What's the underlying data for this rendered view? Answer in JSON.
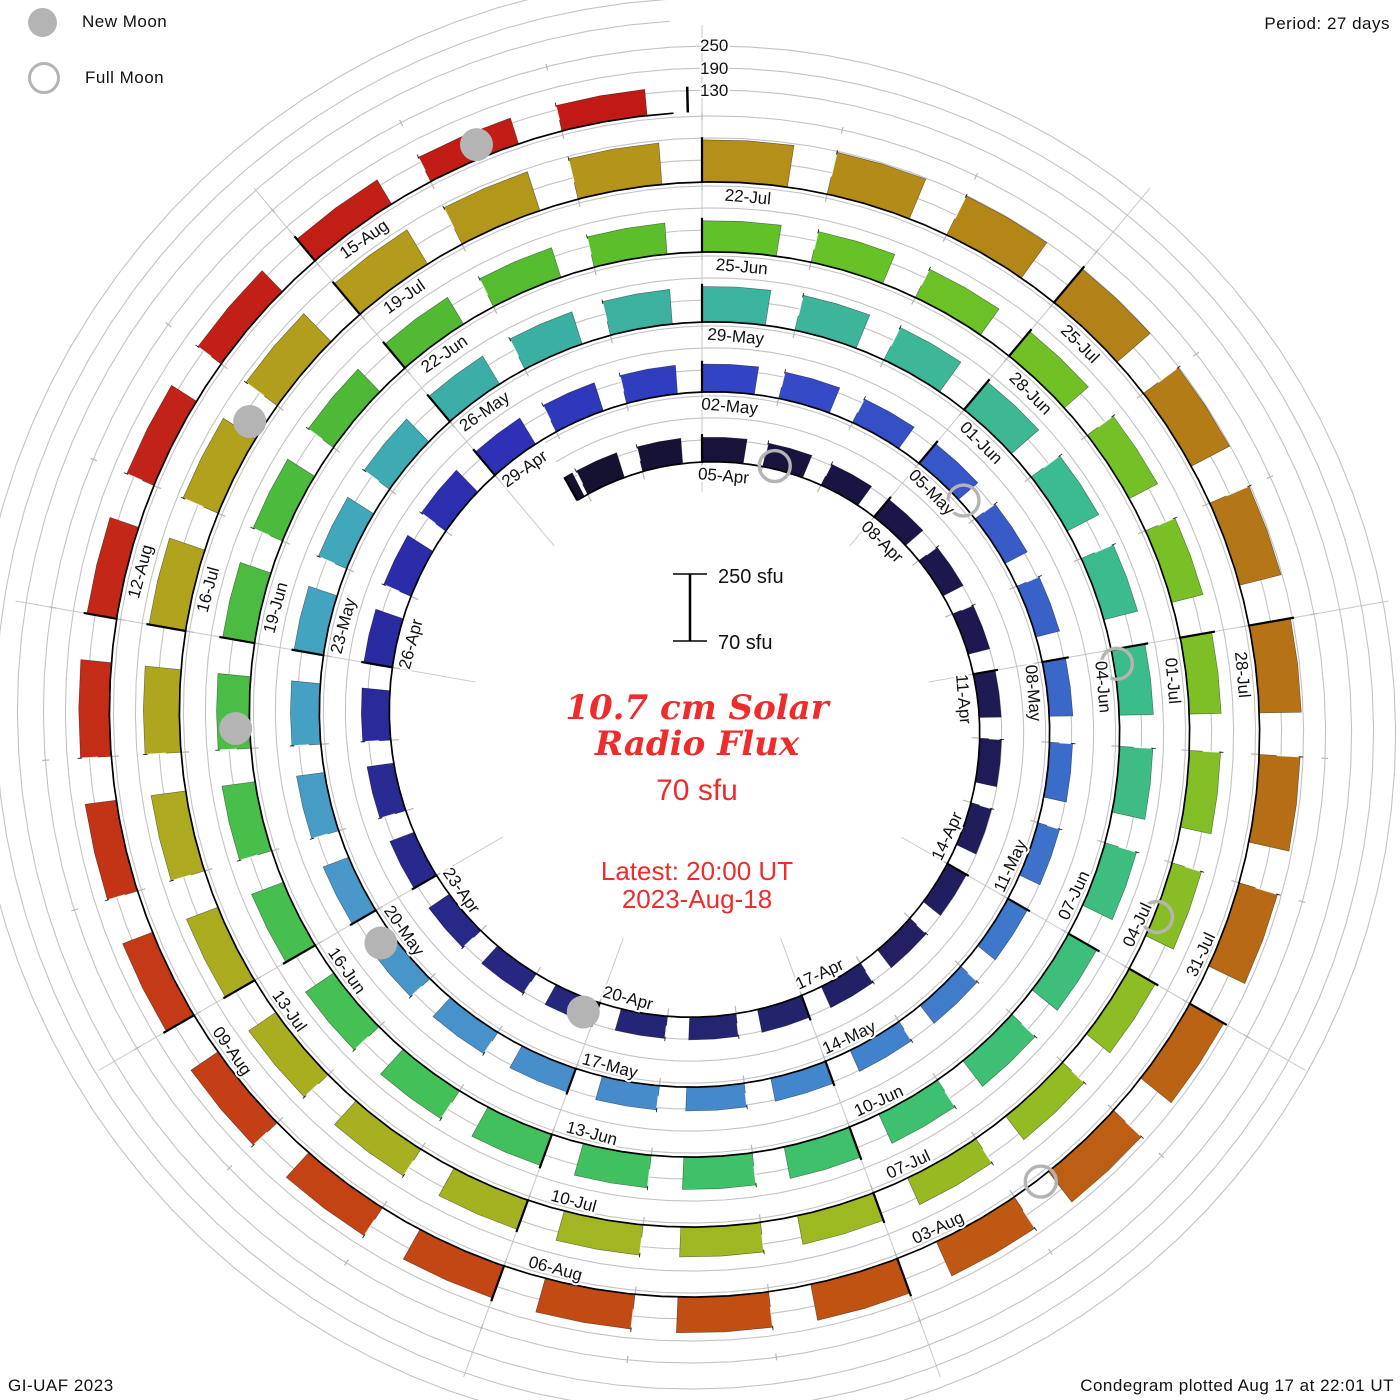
{
  "header": {
    "period_label": "Period: 27 days"
  },
  "legend": {
    "new_moon_label": "New Moon",
    "full_moon_label": "Full Moon",
    "moon_color": "#b4b4b4"
  },
  "footer": {
    "credit_left": "GI-UAF 2023",
    "credit_right": "Condegram plotted Aug 17 at 22:01 UT"
  },
  "center": {
    "title_line1": "10.7 cm Solar",
    "title_line2": "Radio Flux",
    "current_value": "70 sfu",
    "latest_line1": "Latest: 20:00 UT",
    "latest_line2": "2023-Aug-18",
    "accent_color": "#ee2c2c"
  },
  "chart_data": {
    "type": "spiral_condegram",
    "title": "10.7 cm Solar Radio Flux",
    "units": "sfu",
    "period_days": 27,
    "baseline_sfu": 70,
    "radial_gridlines_sfu": [
      130,
      190,
      250
    ],
    "radial_gridline_labels": [
      "130",
      "190",
      "250"
    ],
    "scale_bar": {
      "top_label": "250 sfu",
      "bottom_label": "70 sfu",
      "top_sfu": 250,
      "bottom_sfu": 70
    },
    "start_date": "2023-Apr-03",
    "end_date": "2023-Aug-18",
    "start_day_offset": -2.2,
    "end_day_offset": 134.9,
    "grid_color": "#c3c3c3",
    "spoke_color": "#c8c8c8",
    "tick_color": "#000000",
    "moon_color": "#b4b4b4",
    "date_labels": [
      "05-Apr",
      "08-Apr",
      "11-Apr",
      "14-Apr",
      "17-Apr",
      "20-Apr",
      "23-Apr",
      "26-Apr",
      "29-Apr",
      "02-May",
      "05-May",
      "08-May",
      "11-May",
      "14-May",
      "17-May",
      "20-May",
      "23-May",
      "26-May",
      "29-May",
      "01-Jun",
      "04-Jun",
      "07-Jun",
      "10-Jun",
      "13-Jun",
      "16-Jun",
      "19-Jun",
      "22-Jun",
      "25-Jun",
      "28-Jun",
      "01-Jul",
      "04-Jul",
      "07-Jul",
      "10-Jul",
      "13-Jul",
      "16-Jul",
      "19-Jul",
      "22-Jul",
      "25-Jul",
      "28-Jul",
      "31-Jul",
      "03-Aug",
      "06-Aug",
      "09-Aug",
      "12-Aug",
      "15-Aug"
    ],
    "label_step_days": 3,
    "flux_points": [
      [
        -2.2,
        142
      ],
      [
        0,
        138
      ],
      [
        3,
        133
      ],
      [
        6,
        130
      ],
      [
        9,
        129
      ],
      [
        12,
        134
      ],
      [
        15,
        130
      ],
      [
        18,
        139
      ],
      [
        21,
        148
      ],
      [
        24,
        154
      ],
      [
        27,
        147
      ],
      [
        30,
        141
      ],
      [
        33,
        135
      ],
      [
        36,
        131
      ],
      [
        39,
        133
      ],
      [
        42,
        137
      ],
      [
        45,
        143
      ],
      [
        48,
        150
      ],
      [
        51,
        158
      ],
      [
        54,
        166
      ],
      [
        57,
        170
      ],
      [
        60,
        164
      ],
      [
        63,
        159
      ],
      [
        66,
        157
      ],
      [
        69,
        160
      ],
      [
        72,
        163
      ],
      [
        75,
        159
      ],
      [
        78,
        155
      ],
      [
        81,
        155
      ],
      [
        84,
        157
      ],
      [
        87,
        158
      ],
      [
        90,
        153
      ],
      [
        93,
        149
      ],
      [
        96,
        154
      ],
      [
        99,
        160
      ],
      [
        102,
        170
      ],
      [
        105,
        178
      ],
      [
        108,
        184
      ],
      [
        111,
        190
      ],
      [
        114,
        186
      ],
      [
        117,
        178
      ],
      [
        120,
        171
      ],
      [
        123,
        164
      ],
      [
        126,
        158
      ],
      [
        129,
        153
      ],
      [
        132,
        148
      ],
      [
        135,
        140
      ]
    ],
    "color_stops": [
      [
        -2,
        "#14102e"
      ],
      [
        4,
        "#1b164a"
      ],
      [
        12,
        "#232268"
      ],
      [
        20,
        "#2a2a96"
      ],
      [
        24,
        "#2d2db4"
      ],
      [
        28,
        "#3347c6"
      ],
      [
        33,
        "#3a64c8"
      ],
      [
        39,
        "#4384cc"
      ],
      [
        45,
        "#4a96ca"
      ],
      [
        49,
        "#42a6be"
      ],
      [
        52,
        "#3caea4"
      ],
      [
        56,
        "#3cb69a"
      ],
      [
        60,
        "#3cbc8c"
      ],
      [
        66,
        "#3ec06e"
      ],
      [
        72,
        "#46c052"
      ],
      [
        78,
        "#4eb834"
      ],
      [
        82,
        "#64c226"
      ],
      [
        88,
        "#80be26"
      ],
      [
        94,
        "#9eb822"
      ],
      [
        100,
        "#acaa20"
      ],
      [
        104,
        "#b2a01d"
      ],
      [
        108,
        "#b4921a"
      ],
      [
        112,
        "#b27e17"
      ],
      [
        116,
        "#b66c16"
      ],
      [
        120,
        "#c05512"
      ],
      [
        126,
        "#c43d16"
      ],
      [
        130,
        "#c22418"
      ],
      [
        137,
        "#c01313"
      ]
    ],
    "moons": {
      "full": [
        {
          "date": "2023-Apr-06",
          "day": 1.19
        },
        {
          "date": "2023-May-05",
          "day": 30.73
        },
        {
          "date": "2023-Jun-04",
          "day": 60.15
        },
        {
          "date": "2023-Jul-03",
          "day": 89.49
        },
        {
          "date": "2023-Aug-01",
          "day": 118.77
        }
      ],
      "new": [
        {
          "date": "2023-Apr-20",
          "day": 15.17
        },
        {
          "date": "2023-May-19",
          "day": 44.66
        },
        {
          "date": "2023-Jun-18",
          "day": 74.19
        },
        {
          "date": "2023-Jul-17",
          "day": 103.77
        },
        {
          "date": "2023-Aug-16",
          "day": 133.4
        }
      ]
    }
  }
}
